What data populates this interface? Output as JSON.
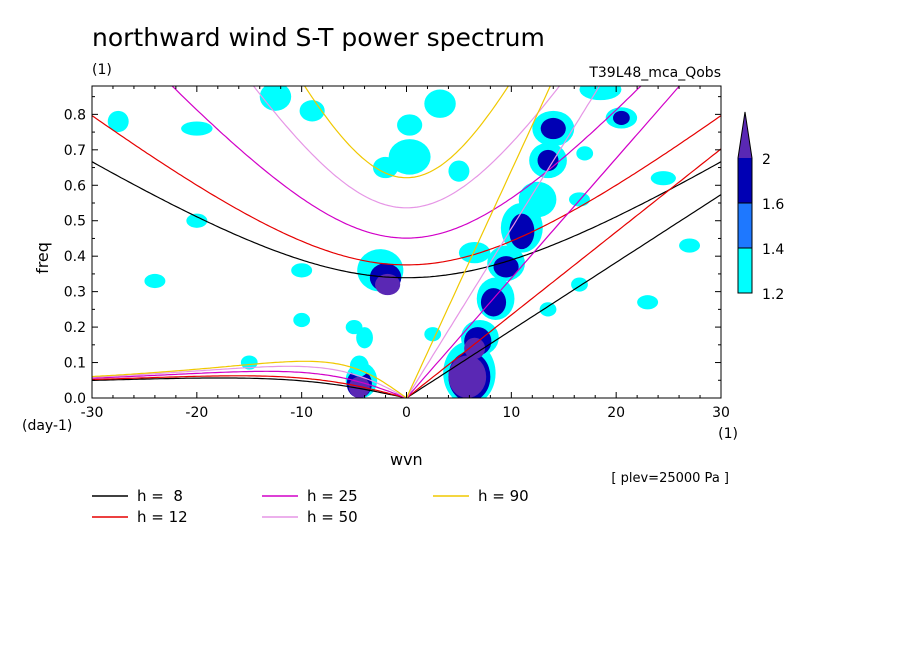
{
  "chart_data": {
    "type": "heatmap",
    "title": "northward wind S-T power spectrum",
    "units_left": "(1)",
    "run_label": "T39L48_mca_Qobs",
    "xlabel": "wvn",
    "ylabel": "freq",
    "y_unit": "(day-1)",
    "x_unit": "(1)",
    "pressure_note": "[ plev=25000 Pa ]",
    "xlim": [
      -30,
      30
    ],
    "ylim": [
      0,
      0.88
    ],
    "x_ticks": [
      "-30",
      "-20",
      "-10",
      "0",
      "10",
      "20",
      "30"
    ],
    "y_ticks": [
      "0.0",
      "0.1",
      "0.2",
      "0.3",
      "0.4",
      "0.5",
      "0.6",
      "0.7",
      "0.8"
    ],
    "colorbar": {
      "levels": [
        "1.2",
        "1.4",
        "1.6",
        "2"
      ],
      "colors": [
        "#00ffff",
        "#1e78ff",
        "#0000b4",
        "#5a28b4"
      ]
    },
    "equivalent_depths": [
      {
        "label": "h =  8",
        "color": "#000000"
      },
      {
        "label": "h = 12",
        "color": "#e60000"
      },
      {
        "label": "h = 25",
        "color": "#d200c8"
      },
      {
        "label": "h = 50",
        "color": "#e696e6"
      },
      {
        "label": "h = 90",
        "color": "#f0c800"
      }
    ],
    "contours": [
      {
        "level": 1.2,
        "region": [
          -27.5,
          0.78,
          1.0,
          0.03
        ]
      },
      {
        "level": 1.2,
        "region": [
          -20.0,
          0.76,
          1.5,
          0.02
        ]
      },
      {
        "level": 1.2,
        "region": [
          -12.5,
          0.85,
          1.5,
          0.04
        ]
      },
      {
        "level": 1.2,
        "region": [
          -9.0,
          0.81,
          1.2,
          0.03
        ]
      },
      {
        "level": 1.2,
        "region": [
          0.3,
          0.77,
          1.2,
          0.03
        ]
      },
      {
        "level": 1.2,
        "region": [
          0.3,
          0.68,
          2.0,
          0.05
        ]
      },
      {
        "level": 1.2,
        "region": [
          -2.0,
          0.65,
          1.2,
          0.03
        ]
      },
      {
        "level": 1.2,
        "region": [
          3.2,
          0.83,
          1.5,
          0.04
        ]
      },
      {
        "level": 1.2,
        "region": [
          5.0,
          0.64,
          1.0,
          0.03
        ]
      },
      {
        "level": 1.2,
        "region": [
          6.5,
          0.41,
          1.5,
          0.03
        ]
      },
      {
        "level": 1.2,
        "region": [
          -24.0,
          0.33,
          1.0,
          0.02
        ]
      },
      {
        "level": 1.2,
        "region": [
          -10.0,
          0.36,
          1.0,
          0.02
        ]
      },
      {
        "level": 1.2,
        "region": [
          -20.0,
          0.5,
          1.0,
          0.02
        ]
      },
      {
        "level": 1.2,
        "region": [
          -10.0,
          0.22,
          0.8,
          0.02
        ]
      },
      {
        "level": 1.2,
        "region": [
          2.5,
          0.18,
          0.8,
          0.02
        ]
      },
      {
        "level": 1.2,
        "region": [
          -15.0,
          0.1,
          0.8,
          0.02
        ]
      },
      {
        "level": 1.2,
        "region": [
          -2.5,
          0.36,
          2.2,
          0.06
        ]
      },
      {
        "level": 1.6,
        "region": [
          -2.0,
          0.34,
          1.5,
          0.04
        ]
      },
      {
        "level": 2.0,
        "region": [
          -1.8,
          0.32,
          1.2,
          0.03
        ]
      },
      {
        "level": 1.2,
        "region": [
          -4.3,
          0.05,
          1.5,
          0.05
        ]
      },
      {
        "level": 1.6,
        "region": [
          -4.5,
          0.04,
          1.2,
          0.04
        ]
      },
      {
        "level": 2.0,
        "region": [
          -4.5,
          0.03,
          1.0,
          0.03
        ]
      },
      {
        "level": 1.2,
        "region": [
          -4.0,
          0.17,
          0.8,
          0.03
        ]
      },
      {
        "level": 1.2,
        "region": [
          -5.0,
          0.2,
          0.8,
          0.02
        ]
      },
      {
        "level": 1.2,
        "region": [
          -4.5,
          0.09,
          0.9,
          0.03
        ]
      },
      {
        "level": 1.2,
        "region": [
          6.0,
          0.07,
          2.5,
          0.09
        ]
      },
      {
        "level": 1.6,
        "region": [
          6.0,
          0.06,
          2.0,
          0.07
        ]
      },
      {
        "level": 2.0,
        "region": [
          5.8,
          0.06,
          1.8,
          0.06
        ]
      },
      {
        "level": 1.2,
        "region": [
          7.0,
          0.17,
          1.8,
          0.05
        ]
      },
      {
        "level": 1.6,
        "region": [
          6.8,
          0.16,
          1.3,
          0.04
        ]
      },
      {
        "level": 2.0,
        "region": [
          6.5,
          0.14,
          1.0,
          0.03
        ]
      },
      {
        "level": 1.2,
        "region": [
          8.5,
          0.28,
          1.8,
          0.06
        ]
      },
      {
        "level": 1.6,
        "region": [
          8.3,
          0.27,
          1.2,
          0.04
        ]
      },
      {
        "level": 1.2,
        "region": [
          9.5,
          0.38,
          1.8,
          0.05
        ]
      },
      {
        "level": 1.6,
        "region": [
          9.5,
          0.37,
          1.2,
          0.03
        ]
      },
      {
        "level": 1.2,
        "region": [
          11.0,
          0.48,
          2.0,
          0.07
        ]
      },
      {
        "level": 1.6,
        "region": [
          11.0,
          0.47,
          1.2,
          0.05
        ]
      },
      {
        "level": 1.2,
        "region": [
          12.5,
          0.56,
          1.8,
          0.05
        ]
      },
      {
        "level": 1.2,
        "region": [
          13.5,
          0.67,
          1.8,
          0.05
        ]
      },
      {
        "level": 1.6,
        "region": [
          13.5,
          0.67,
          1.0,
          0.03
        ]
      },
      {
        "level": 1.2,
        "region": [
          14.0,
          0.76,
          2.0,
          0.05
        ]
      },
      {
        "level": 1.6,
        "region": [
          14.0,
          0.76,
          1.2,
          0.03
        ]
      },
      {
        "level": 1.2,
        "region": [
          18.5,
          0.87,
          2.0,
          0.03
        ]
      },
      {
        "level": 1.2,
        "region": [
          20.5,
          0.79,
          1.5,
          0.03
        ]
      },
      {
        "level": 1.6,
        "region": [
          20.5,
          0.79,
          0.8,
          0.02
        ]
      },
      {
        "level": 1.2,
        "region": [
          24.5,
          0.62,
          1.2,
          0.02
        ]
      },
      {
        "level": 1.2,
        "region": [
          23.0,
          0.27,
          1.0,
          0.02
        ]
      },
      {
        "level": 1.2,
        "region": [
          27.0,
          0.43,
          1.0,
          0.02
        ]
      },
      {
        "level": 1.2,
        "region": [
          16.5,
          0.32,
          0.8,
          0.02
        ]
      },
      {
        "level": 1.2,
        "region": [
          16.5,
          0.56,
          1.0,
          0.02
        ]
      },
      {
        "level": 1.2,
        "region": [
          17.0,
          0.69,
          0.8,
          0.02
        ]
      },
      {
        "level": 1.2,
        "region": [
          13.5,
          0.25,
          0.8,
          0.02
        ]
      }
    ]
  }
}
